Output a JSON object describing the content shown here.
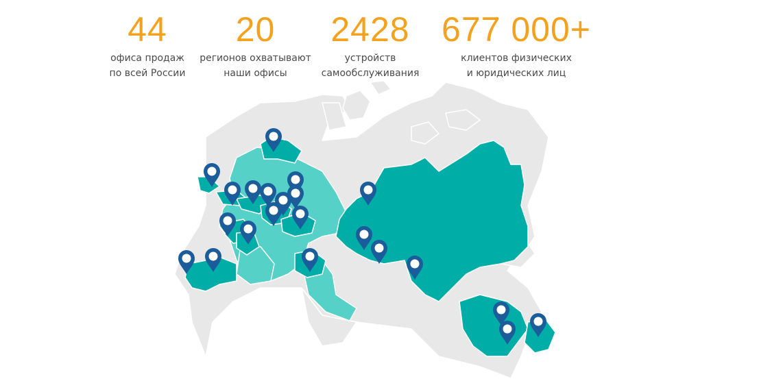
{
  "stats": [
    {
      "value": "44",
      "description": "офиса продаж\nпо всей России"
    },
    {
      "value": "20",
      "description": "регионов охватывают\nнаши офисы"
    },
    {
      "value": "2428",
      "description": "устройств\nсамообслуживания"
    },
    {
      "value": "677 000+",
      "description": "клиентов физических\nи юридических лиц"
    }
  ],
  "colors": {
    "accent_number": "#f4a11d",
    "region_covered": "#00aea7",
    "region_light": "#55d1c7",
    "region_uncovered": "#e8e8e8",
    "pin": "#1b5c9b"
  },
  "map": {
    "pin_icon": "map-pin-icon",
    "office_pin_count": 26
  }
}
